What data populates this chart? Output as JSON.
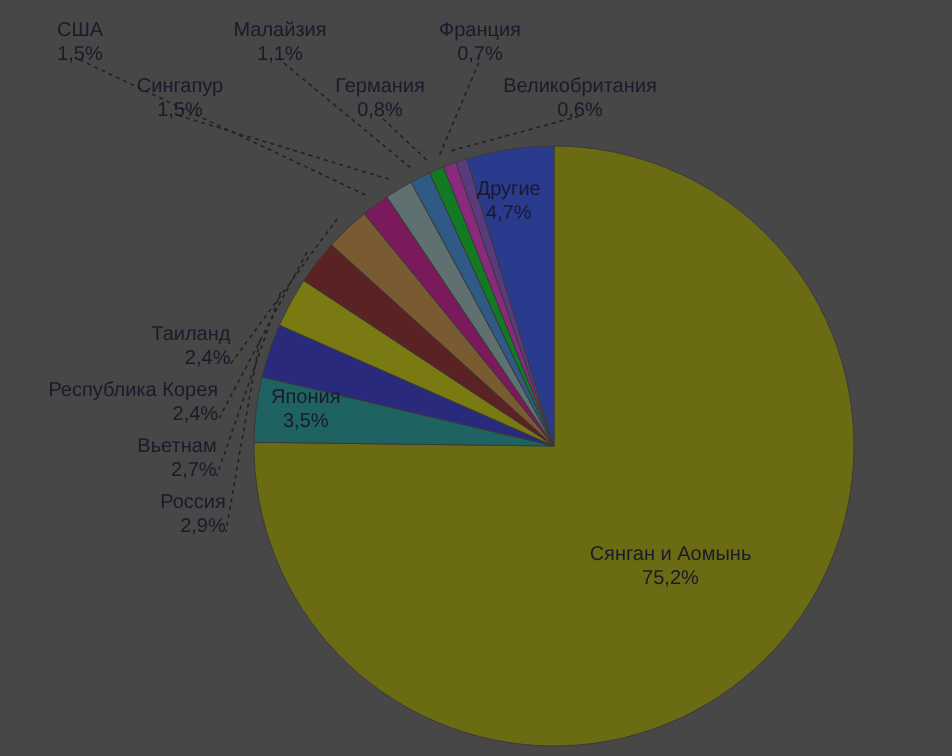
{
  "chart_data": {
    "type": "pie",
    "categories": [
      "Сянган и Аомынь",
      "Япония",
      "Россия",
      "Вьетнам",
      "Республика Корея",
      "Таиланд",
      "США",
      "Сингапур",
      "Малайзия",
      "Германия",
      "Франция",
      "Великобритания",
      "Другие"
    ],
    "values": [
      75.2,
      3.5,
      2.9,
      2.7,
      2.4,
      2.4,
      1.5,
      1.5,
      1.1,
      0.8,
      0.7,
      0.6,
      4.7
    ],
    "value_labels": [
      "75,2%",
      "3,5%",
      "2,9%",
      "2,7%",
      "2,4%",
      "2,4%",
      "1,5%",
      "1,5%",
      "1,1%",
      "0,8%",
      "0,7%",
      "0,6%",
      "4,7%"
    ],
    "colors": [
      "#6b6b14",
      "#1f6262",
      "#2a2a7c",
      "#7a7a12",
      "#5a2222",
      "#7a5a30",
      "#7a1a5c",
      "#5f7070",
      "#305a86",
      "#127a22",
      "#8a2a7c",
      "#5a3a7c",
      "#2a3a8c"
    ],
    "legend": false
  }
}
